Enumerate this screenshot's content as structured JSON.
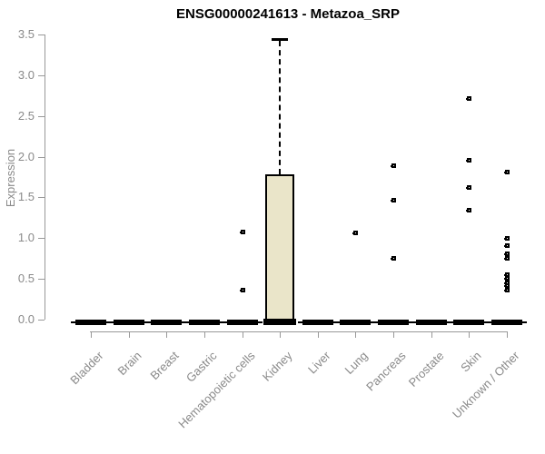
{
  "chart_data": {
    "type": "boxplot",
    "title": "ENSG00000241613 - Metazoa_SRP",
    "ylabel": "Expression",
    "xlabel": "",
    "ylim": [
      0,
      3.5
    ],
    "yticks": [
      0.0,
      0.5,
      1.0,
      1.5,
      2.0,
      2.5,
      3.0,
      3.5
    ],
    "grid": false,
    "legend": false,
    "categories": [
      "Bladder",
      "Brain",
      "Breast",
      "Gastric",
      "Hematopoietic cells",
      "Kidney",
      "Liver",
      "Lung",
      "Pancreas",
      "Prostate",
      "Skin",
      "Unknown / Other"
    ],
    "series": [
      {
        "name": "Bladder",
        "whisker_low": 0,
        "q1": 0,
        "median": 0,
        "q3": 0,
        "whisker_high": 0,
        "outliers": []
      },
      {
        "name": "Brain",
        "whisker_low": 0,
        "q1": 0,
        "median": 0,
        "q3": 0,
        "whisker_high": 0,
        "outliers": []
      },
      {
        "name": "Breast",
        "whisker_low": 0,
        "q1": 0,
        "median": 0,
        "q3": 0,
        "whisker_high": 0,
        "outliers": []
      },
      {
        "name": "Gastric",
        "whisker_low": 0,
        "q1": 0,
        "median": 0,
        "q3": 0,
        "whisker_high": 0,
        "outliers": []
      },
      {
        "name": "Hematopoietic cells",
        "whisker_low": 0,
        "q1": 0,
        "median": 0,
        "q3": 0,
        "whisker_high": 0,
        "outliers": [
          1.08,
          0.37
        ]
      },
      {
        "name": "Kidney",
        "whisker_low": 0,
        "q1": 0,
        "median": 0.02,
        "q3": 1.78,
        "whisker_high": 3.45,
        "outliers": []
      },
      {
        "name": "Liver",
        "whisker_low": 0,
        "q1": 0,
        "median": 0,
        "q3": 0,
        "whisker_high": 0,
        "outliers": []
      },
      {
        "name": "Lung",
        "whisker_low": 0,
        "q1": 0,
        "median": 0,
        "q3": 0,
        "whisker_high": 0,
        "outliers": [
          1.07
        ]
      },
      {
        "name": "Pancreas",
        "whisker_low": 0,
        "q1": 0,
        "median": 0,
        "q3": 0,
        "whisker_high": 0,
        "outliers": [
          1.89,
          1.47,
          0.76
        ]
      },
      {
        "name": "Prostate",
        "whisker_low": 0,
        "q1": 0,
        "median": 0,
        "q3": 0,
        "whisker_high": 0,
        "outliers": []
      },
      {
        "name": "Skin",
        "whisker_low": 0,
        "q1": 0,
        "median": 0,
        "q3": 0,
        "whisker_high": 0,
        "outliers": [
          2.72,
          1.96,
          1.63,
          1.35
        ]
      },
      {
        "name": "Unknown / Other",
        "whisker_low": 0,
        "q1": 0,
        "median": 0,
        "q3": 0,
        "whisker_high": 0,
        "outliers": [
          1.82,
          1.0,
          0.91,
          0.81,
          0.76,
          0.56,
          0.51,
          0.46,
          0.42,
          0.37
        ]
      }
    ],
    "colors": {
      "box_fill": "#EAE5C9",
      "box_border": "#000000",
      "median": "#000000",
      "outlier": "#000000",
      "axis_line": "#999999",
      "axis_text": "#8a8a8a",
      "title_text": "#000000"
    }
  }
}
